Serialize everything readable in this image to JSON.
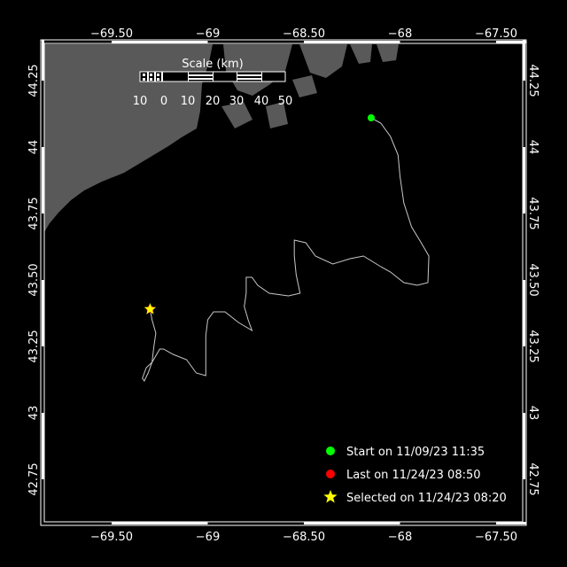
{
  "map": {
    "lon_ticks": [
      {
        "lon": -69.5,
        "label": "−69.50"
      },
      {
        "lon": -69.0,
        "label": "−69"
      },
      {
        "lon": -68.5,
        "label": "−68.50"
      },
      {
        "lon": -68.0,
        "label": "−68"
      },
      {
        "lon": -67.5,
        "label": "−67.50"
      }
    ],
    "lat_ticks": [
      {
        "lat": 44.25,
        "label": "44.25"
      },
      {
        "lat": 44.0,
        "label": "44"
      },
      {
        "lat": 43.75,
        "label": "43.75"
      },
      {
        "lat": 43.5,
        "label": "43.50"
      },
      {
        "lat": 43.25,
        "label": "43.25"
      },
      {
        "lat": 43.0,
        "label": "43"
      },
      {
        "lat": 42.75,
        "label": "42.75"
      }
    ],
    "colors": {
      "land": "#595959",
      "water": "#000000",
      "track": "#c8c8c8",
      "start": "#00ff00",
      "last": "#ff0000",
      "selected": "#ffff00"
    }
  },
  "scale": {
    "title": "Scale (km)",
    "labels": [
      "10",
      "0",
      "10",
      "20",
      "30",
      "40",
      "50"
    ]
  },
  "track": [
    [
      -68.15,
      44.11
    ],
    [
      -68.1,
      44.09
    ],
    [
      -68.05,
      44.04
    ],
    [
      -68.01,
      43.97
    ],
    [
      -68.0,
      43.89
    ],
    [
      -67.98,
      43.79
    ],
    [
      -67.94,
      43.7
    ],
    [
      -67.89,
      43.64
    ],
    [
      -67.85,
      43.59
    ],
    [
      -67.855,
      43.49
    ],
    [
      -67.91,
      43.48
    ],
    [
      -67.98,
      43.49
    ],
    [
      -68.05,
      43.53
    ],
    [
      -68.1,
      43.55
    ],
    [
      -68.19,
      43.59
    ],
    [
      -68.26,
      43.58
    ],
    [
      -68.35,
      43.56
    ],
    [
      -68.44,
      43.59
    ],
    [
      -68.49,
      43.64
    ],
    [
      -68.55,
      43.65
    ],
    [
      -68.55,
      43.59
    ],
    [
      -68.54,
      43.52
    ],
    [
      -68.52,
      43.45
    ],
    [
      -68.58,
      43.44
    ],
    [
      -68.68,
      43.45
    ],
    [
      -68.74,
      43.48
    ],
    [
      -68.77,
      43.51
    ],
    [
      -68.8,
      43.51
    ],
    [
      -68.8,
      43.45
    ],
    [
      -68.81,
      43.4
    ],
    [
      -68.79,
      43.35
    ],
    [
      -68.77,
      43.31
    ],
    [
      -68.84,
      43.34
    ],
    [
      -68.91,
      43.38
    ],
    [
      -68.97,
      43.38
    ],
    [
      -69.0,
      43.35
    ],
    [
      -69.01,
      43.29
    ],
    [
      -69.01,
      43.22
    ],
    [
      -69.01,
      43.14
    ],
    [
      -69.06,
      43.15
    ],
    [
      -69.11,
      43.2
    ],
    [
      -69.18,
      43.22
    ],
    [
      -69.23,
      43.24
    ],
    [
      -69.25,
      43.24
    ],
    [
      -69.29,
      43.19
    ],
    [
      -69.32,
      43.17
    ],
    [
      -69.34,
      43.13
    ],
    [
      -69.33,
      43.12
    ],
    [
      -69.31,
      43.15
    ],
    [
      -69.29,
      43.19
    ],
    [
      -69.28,
      43.25
    ],
    [
      -69.27,
      43.3
    ],
    [
      -69.29,
      43.35
    ],
    [
      -69.3,
      43.39
    ]
  ],
  "markers": {
    "start": {
      "lon": -68.15,
      "lat": 44.11
    },
    "last": {
      "lon": -69.3,
      "lat": 43.39
    },
    "selected": {
      "lon": -69.3,
      "lat": 43.39
    }
  },
  "legend": {
    "start": "Start on 11/09/23 11:35",
    "last": "Last on 11/24/23 08:50",
    "selected": "Selected on 11/24/23 08:20"
  }
}
